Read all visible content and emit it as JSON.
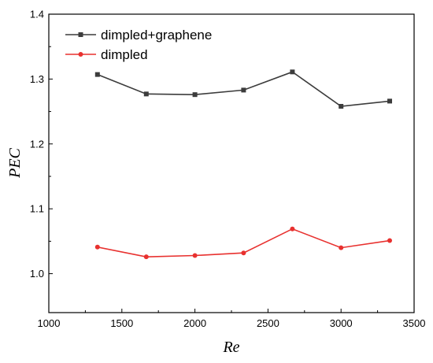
{
  "chart_data": {
    "type": "line",
    "title": "",
    "xlabel": "Re",
    "ylabel": "PEC",
    "xlim": [
      1000,
      3500
    ],
    "ylim": [
      0.94,
      1.4
    ],
    "x_ticks": [
      1000,
      1500,
      2000,
      2500,
      3000,
      3500
    ],
    "y_ticks": [
      1.0,
      1.1,
      1.2,
      1.3,
      1.4
    ],
    "x_tick_labels": [
      "1000",
      "1500",
      "2000",
      "2500",
      "3000",
      "3500"
    ],
    "y_tick_labels": [
      "1.0",
      "1.1",
      "1.2",
      "1.3",
      "1.4"
    ],
    "grid": false,
    "legend_position": "top-left",
    "x": [
      1333,
      1667,
      2000,
      2333,
      2667,
      3000,
      3333
    ],
    "series": [
      {
        "name": "dimpled+graphene",
        "color": "#3c3c3c",
        "marker": "square",
        "values": [
          1.307,
          1.277,
          1.276,
          1.283,
          1.311,
          1.258,
          1.266
        ]
      },
      {
        "name": "dimpled",
        "color": "#e8312f",
        "marker": "circle",
        "values": [
          1.041,
          1.026,
          1.028,
          1.032,
          1.069,
          1.04,
          1.051
        ]
      }
    ]
  }
}
